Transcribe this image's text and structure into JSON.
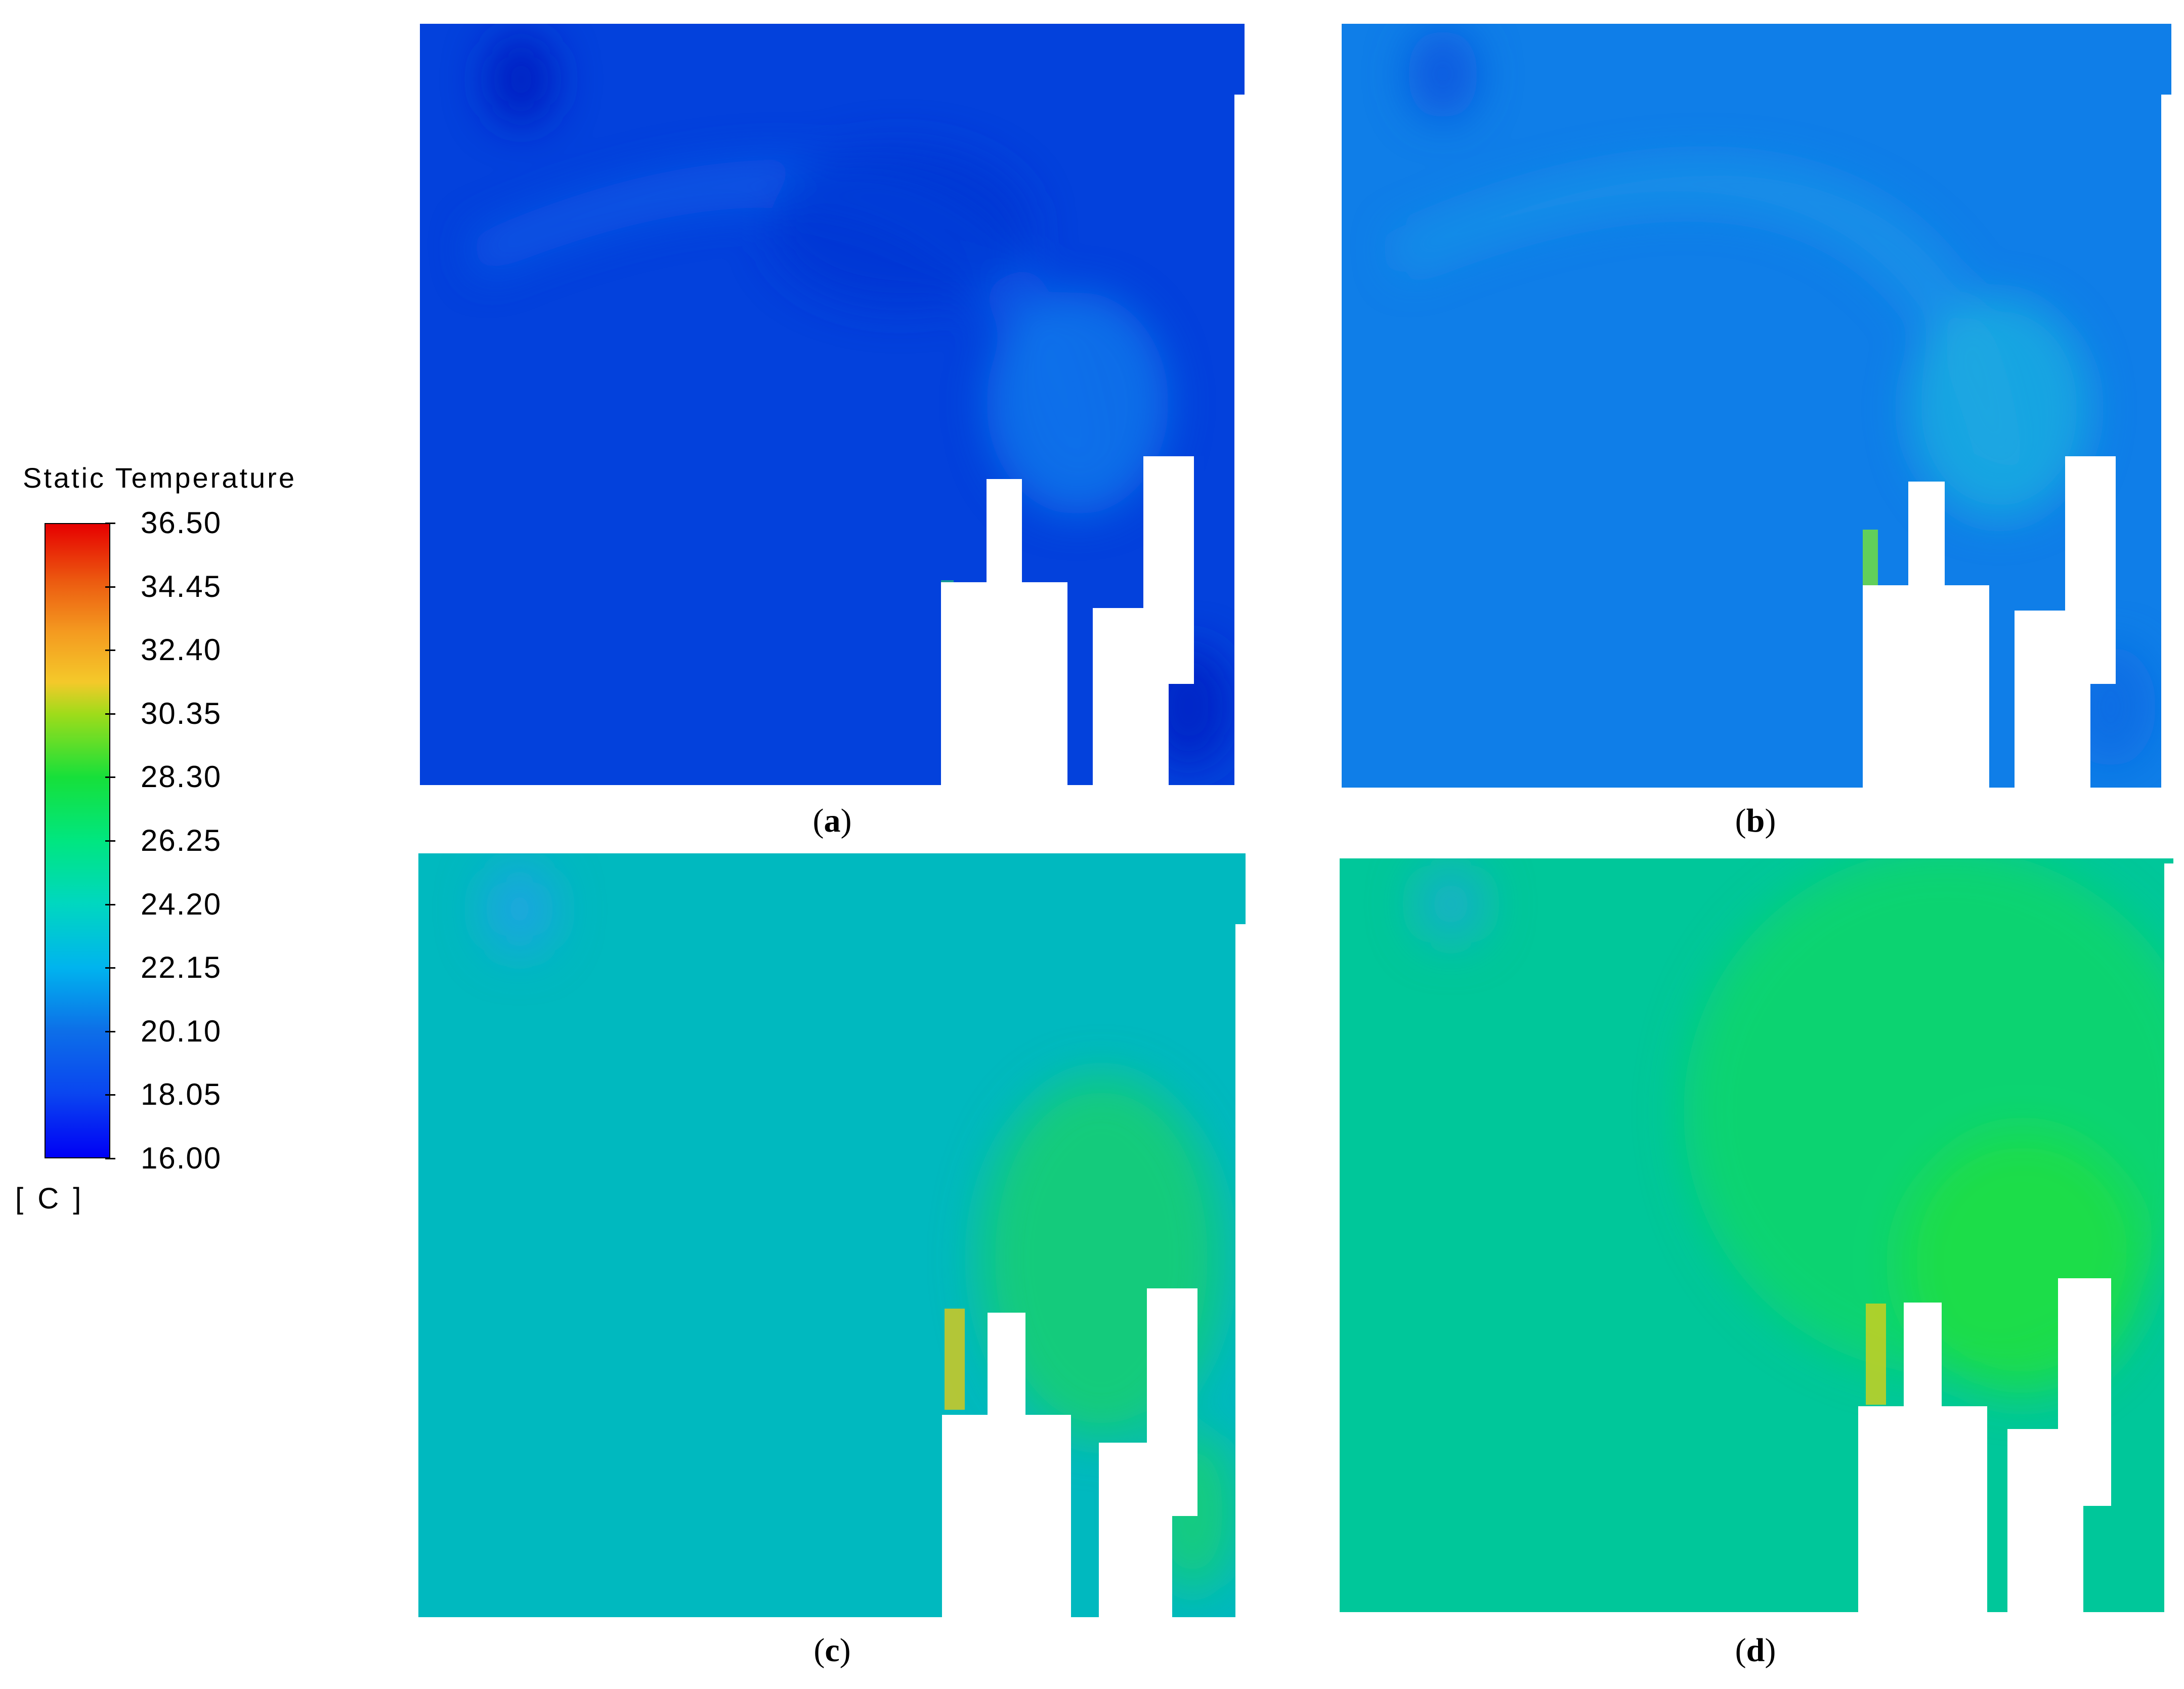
{
  "legend": {
    "title": "Static Temperature",
    "unit": "[ C ]",
    "ticks": [
      "36.50",
      "34.45",
      "32.40",
      "30.35",
      "28.30",
      "26.25",
      "24.20",
      "22.15",
      "20.10",
      "18.05",
      "16.00"
    ],
    "min": 16.0,
    "max": 36.5
  },
  "colors": {
    "panel_a_base": "#0341dc",
    "panel_b_base": "#0f7ee8",
    "panel_c_base": "#00b9bf",
    "panel_d_base": "#00c79a",
    "warm_edge": "#9fe018",
    "hot_edge": "#d2c820"
  },
  "panels": [
    {
      "label": "a",
      "base_temperature_C": 17.5
    },
    {
      "label": "b",
      "base_temperature_C": 19.8
    },
    {
      "label": "c",
      "base_temperature_C": 22.2
    },
    {
      "label": "d",
      "base_temperature_C": 23.5
    }
  ]
}
